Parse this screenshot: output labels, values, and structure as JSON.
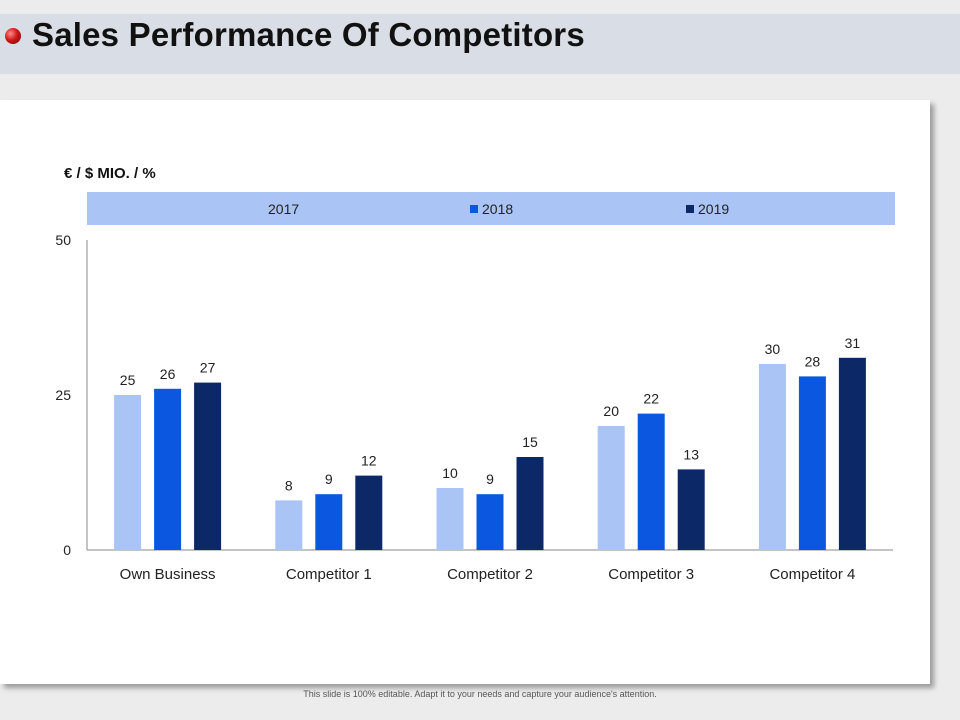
{
  "slide": {
    "title": "Sales Performance Of Competitors",
    "footnote": "This slide is 100% editable. Adapt it to your needs and capture your audience's attention."
  },
  "colors": {
    "s2017": "#a9c4f5",
    "s2018": "#0b57e0",
    "s2019": "#0c2866"
  },
  "chart_data": {
    "type": "bar",
    "ylabel": "€ / $ MIO. / %",
    "categories": [
      "Own Business",
      "Competitor 1",
      "Competitor 2",
      "Competitor 3",
      "Competitor 4"
    ],
    "series": [
      {
        "name": "2017",
        "values": [
          25,
          8,
          10,
          20,
          30
        ]
      },
      {
        "name": "2018",
        "values": [
          26,
          9,
          9,
          22,
          28
        ]
      },
      {
        "name": "2019",
        "values": [
          27,
          12,
          15,
          13,
          31
        ]
      }
    ],
    "ylim": [
      0,
      50
    ],
    "yticks": [
      0,
      25,
      50
    ],
    "legend_position": "top",
    "grid": false
  }
}
